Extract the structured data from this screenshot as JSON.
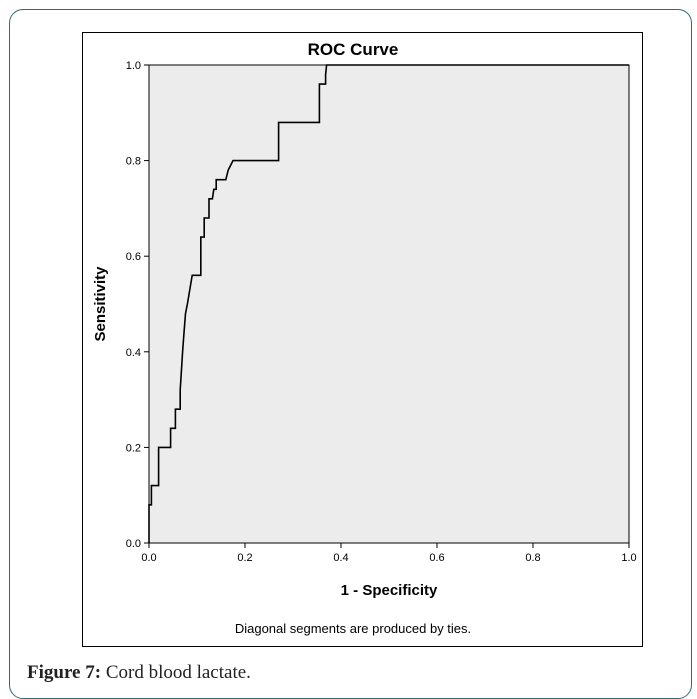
{
  "figure": {
    "caption_label": "Figure 7:",
    "caption_text": " Cord blood lactate."
  },
  "chart_data": {
    "type": "line",
    "title": "ROC Curve",
    "xlabel": "1 - Specificity",
    "ylabel": "Sensitivity",
    "footnote": "Diagonal segments are produced by ties.",
    "xlim": [
      0.0,
      1.0
    ],
    "ylim": [
      0.0,
      1.0
    ],
    "xticks": [
      "0.0",
      "0.2",
      "0.4",
      "0.6",
      "0.8",
      "1.0"
    ],
    "yticks": [
      "0.0",
      "0.2",
      "0.4",
      "0.6",
      "0.8",
      "1.0"
    ],
    "grid": false,
    "plot_background": "#ececec",
    "line_color": "#000000",
    "series": [
      {
        "x": [
          0.0,
          0.0,
          0.005,
          0.005,
          0.02,
          0.02,
          0.045,
          0.045,
          0.055,
          0.055,
          0.065,
          0.065,
          0.07,
          0.073,
          0.076,
          0.08,
          0.09,
          0.095,
          0.108,
          0.108,
          0.115,
          0.115,
          0.125,
          0.125,
          0.132,
          0.135,
          0.14,
          0.14,
          0.16,
          0.165,
          0.175,
          0.175,
          0.27,
          0.27,
          0.355,
          0.355,
          0.36,
          0.368,
          0.368,
          0.37,
          1.0
        ],
        "y": [
          0.0,
          0.08,
          0.08,
          0.12,
          0.12,
          0.2,
          0.2,
          0.24,
          0.24,
          0.28,
          0.28,
          0.32,
          0.4,
          0.44,
          0.48,
          0.5,
          0.56,
          0.56,
          0.56,
          0.64,
          0.64,
          0.68,
          0.68,
          0.72,
          0.72,
          0.74,
          0.74,
          0.76,
          0.76,
          0.78,
          0.8,
          0.8,
          0.8,
          0.88,
          0.88,
          0.96,
          0.96,
          0.96,
          0.98,
          1.0,
          1.0
        ]
      }
    ]
  }
}
